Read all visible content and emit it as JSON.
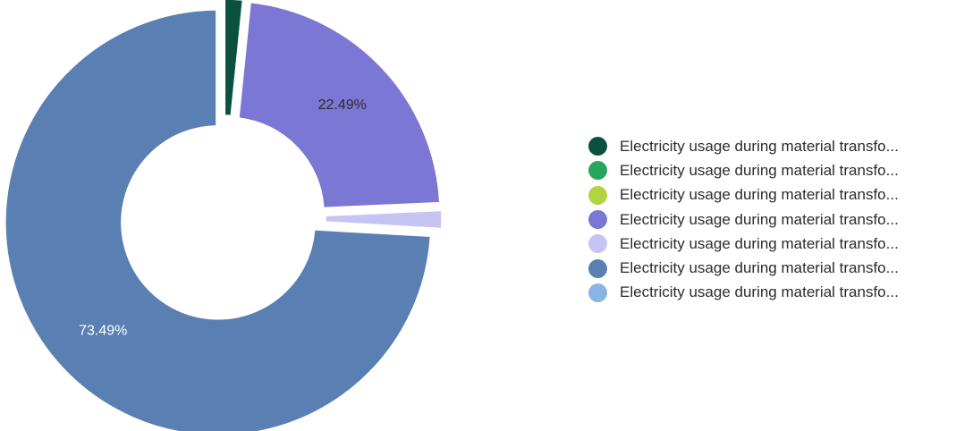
{
  "chart_data": {
    "type": "pie",
    "variant": "donut",
    "slices": [
      {
        "label": "Electricity usage during material transfo...",
        "value": 1.6,
        "color": "#0b5140"
      },
      {
        "label": "Electricity usage during material transfo...",
        "value": 0.0,
        "color": "#2aa65a"
      },
      {
        "label": "Electricity usage during material transfo...",
        "value": 0.0,
        "color": "#b1d443"
      },
      {
        "label": "Electricity usage during material transfo...",
        "value": 22.49,
        "color": "#7c76d4",
        "data_label": "22.49%",
        "label_color": "#2b2b2b"
      },
      {
        "label": "Electricity usage during material transfo...",
        "value": 1.6,
        "color": "#c7c4f4"
      },
      {
        "label": "Electricity usage during material transfo...",
        "value": 73.49,
        "color": "#5a80b3",
        "data_label": "73.49%",
        "label_color": "#ffffff"
      },
      {
        "label": "Electricity usage during material transfo...",
        "value": 0.0,
        "color": "#8ab4e3"
      }
    ],
    "legend_position": "right"
  }
}
